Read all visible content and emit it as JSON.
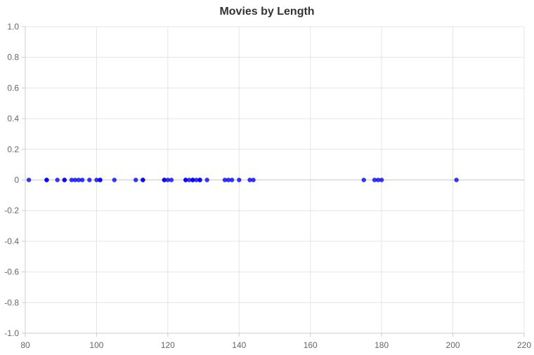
{
  "chart_data": {
    "type": "scatter",
    "title": "Movies by Length",
    "xlabel": "",
    "ylabel": "",
    "xlim": [
      80,
      220
    ],
    "ylim": [
      -1.0,
      1.0
    ],
    "x_ticks": [
      80,
      100,
      120,
      140,
      160,
      180,
      200,
      220
    ],
    "y_ticks": [
      1.0,
      0.8,
      0.6,
      0.4,
      0.2,
      0,
      -0.2,
      -0.4,
      -0.6,
      -0.8,
      -1.0
    ],
    "y_tick_labels": [
      "1.0",
      "0.8",
      "0.6",
      "0.4",
      "0.2",
      "0",
      "-0.2",
      "-0.4",
      "-0.6",
      "-0.8",
      "-1.0"
    ],
    "grid": true,
    "legend": "none",
    "series": [
      {
        "color": "#0000ee",
        "points": [
          {
            "x": 81,
            "y": 0
          },
          {
            "x": 86,
            "y": 0
          },
          {
            "x": 86,
            "y": 0
          },
          {
            "x": 89,
            "y": 0
          },
          {
            "x": 91,
            "y": 0
          },
          {
            "x": 91,
            "y": 0
          },
          {
            "x": 93,
            "y": 0
          },
          {
            "x": 94,
            "y": 0
          },
          {
            "x": 95,
            "y": 0
          },
          {
            "x": 96,
            "y": 0
          },
          {
            "x": 98,
            "y": 0
          },
          {
            "x": 100,
            "y": 0
          },
          {
            "x": 101,
            "y": 0
          },
          {
            "x": 101,
            "y": 0
          },
          {
            "x": 105,
            "y": 0
          },
          {
            "x": 111,
            "y": 0
          },
          {
            "x": 113,
            "y": 0
          },
          {
            "x": 113,
            "y": 0
          },
          {
            "x": 119,
            "y": 0
          },
          {
            "x": 119,
            "y": 0
          },
          {
            "x": 120,
            "y": 0
          },
          {
            "x": 121,
            "y": 0
          },
          {
            "x": 125,
            "y": 0
          },
          {
            "x": 125,
            "y": 0
          },
          {
            "x": 126,
            "y": 0
          },
          {
            "x": 127,
            "y": 0
          },
          {
            "x": 127,
            "y": 0
          },
          {
            "x": 128,
            "y": 0
          },
          {
            "x": 129,
            "y": 0
          },
          {
            "x": 129,
            "y": 0
          },
          {
            "x": 131,
            "y": 0
          },
          {
            "x": 136,
            "y": 0
          },
          {
            "x": 137,
            "y": 0
          },
          {
            "x": 138,
            "y": 0
          },
          {
            "x": 140,
            "y": 0
          },
          {
            "x": 143,
            "y": 0
          },
          {
            "x": 144,
            "y": 0
          },
          {
            "x": 175,
            "y": 0
          },
          {
            "x": 178,
            "y": 0
          },
          {
            "x": 179,
            "y": 0
          },
          {
            "x": 180,
            "y": 0
          },
          {
            "x": 201,
            "y": 0
          }
        ]
      }
    ]
  }
}
